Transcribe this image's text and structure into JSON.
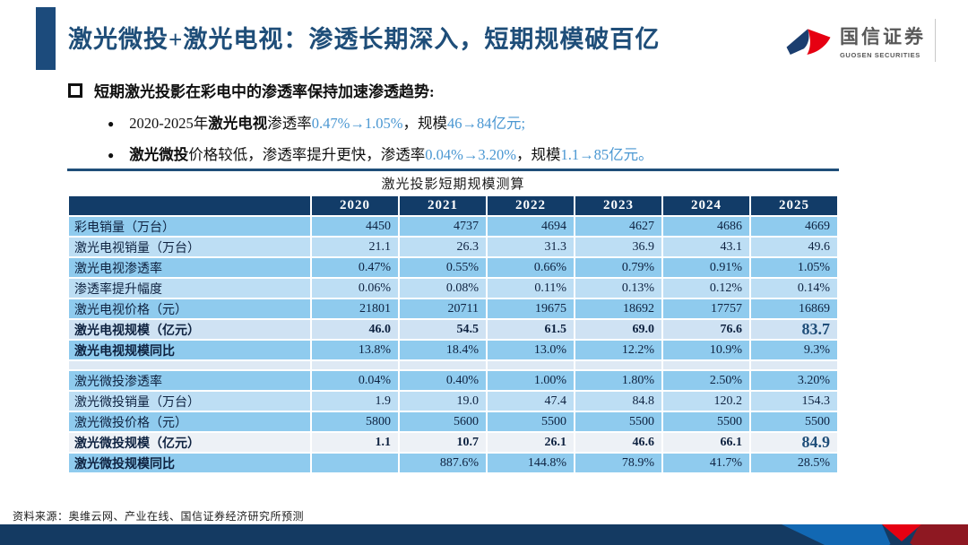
{
  "header": {
    "title": "激光微投+激光电视：渗透长期深入，短期规模破百亿",
    "brand": {
      "name_cn": "国信证券",
      "name_en": "GUOSEN SECURITIES"
    }
  },
  "bullets": {
    "heading": "短期激光投影在彩电中的渗透率保持加速渗透趋势:",
    "items": [
      {
        "segments": [
          {
            "t": "2020-2025年"
          },
          {
            "t": "激光电视",
            "b": true
          },
          {
            "t": "渗透率"
          },
          {
            "t": "0.47%→1.05%",
            "c": "blue"
          },
          {
            "t": "，规模"
          },
          {
            "t": "46→84亿元;",
            "c": "blue"
          }
        ]
      },
      {
        "segments": [
          {
            "t": "激光微投",
            "b": true
          },
          {
            "t": "价格较低，渗透率提升更快，渗透率"
          },
          {
            "t": "0.04%→3.20%",
            "c": "blue"
          },
          {
            "t": "，规模"
          },
          {
            "t": "1.1→85亿元。",
            "c": "blue"
          }
        ]
      }
    ]
  },
  "table": {
    "title": "激光投影短期规模测算",
    "years": [
      "2020",
      "2021",
      "2022",
      "2023",
      "2024",
      "2025"
    ],
    "rows": [
      {
        "label": "彩电销量（万台）",
        "values": [
          "4450",
          "4737",
          "4694",
          "4627",
          "4686",
          "4669"
        ],
        "bg": "row_medium"
      },
      {
        "label": "激光电视销量（万台）",
        "values": [
          "21.1",
          "26.3",
          "31.3",
          "36.9",
          "43.1",
          "49.6"
        ],
        "bg": "row_light"
      },
      {
        "label": "激光电视渗透率",
        "values": [
          "0.47%",
          "0.55%",
          "0.66%",
          "0.79%",
          "0.91%",
          "1.05%"
        ],
        "bg": "row_medium"
      },
      {
        "label": "渗透率提升幅度",
        "values": [
          "0.06%",
          "0.08%",
          "0.11%",
          "0.13%",
          "0.12%",
          "0.14%"
        ],
        "bg": "row_light"
      },
      {
        "label": "激光电视价格（元）",
        "values": [
          "21801",
          "20711",
          "19675",
          "18692",
          "17757",
          "16869"
        ],
        "bg": "row_medium"
      },
      {
        "label": "激光电视规模（亿元）",
        "values": [
          "46.0",
          "54.5",
          "61.5",
          "69.0",
          "76.6",
          "83.7"
        ],
        "bg": "row_subtotal_tv",
        "bold": true,
        "highlight_last": true
      },
      {
        "label": "激光电视规模同比",
        "values": [
          "13.8%",
          "18.4%",
          "13.0%",
          "12.2%",
          "10.9%",
          "9.3%"
        ],
        "bg": "row_medium",
        "bold_label": true
      },
      {
        "label": "",
        "values": [
          "",
          "",
          "",
          "",
          "",
          ""
        ],
        "bg": "row_spacer",
        "spacer": true
      },
      {
        "label": "激光微投渗透率",
        "values": [
          "0.04%",
          "0.40%",
          "1.00%",
          "1.80%",
          "2.50%",
          "3.20%"
        ],
        "bg": "row_medium"
      },
      {
        "label": "激光微投销量（万台）",
        "values": [
          "1.9",
          "19.0",
          "47.4",
          "84.8",
          "120.2",
          "154.3"
        ],
        "bg": "row_light"
      },
      {
        "label": "激光微投价格（元）",
        "values": [
          "5800",
          "5600",
          "5500",
          "5500",
          "5500",
          "5500"
        ],
        "bg": "row_medium"
      },
      {
        "label": "激光微投规模（亿元）",
        "values": [
          "1.1",
          "10.7",
          "26.1",
          "46.6",
          "66.1",
          "84.9"
        ],
        "bg": "row_subtotal_proj",
        "bold": true,
        "highlight_last": true
      },
      {
        "label": "激光微投规模同比",
        "values": [
          "",
          "887.6%",
          "144.8%",
          "78.9%",
          "41.7%",
          "28.5%"
        ],
        "bg": "row_medium",
        "bold_label": true
      }
    ]
  },
  "footer": {
    "source": "资料来源：奥维云网、产业在线、国信证券经济研究所预测"
  },
  "colors": {
    "title": "#1F4E79",
    "accent_text": "#4A97D2",
    "table_header_bg": "#123C68",
    "row_medium": "#8FCBEE",
    "row_light": "#BDDEF4",
    "row_subtotal_tv": "#CFE2F3",
    "row_subtotal_proj": "#EDF1F6",
    "row_spacer": "#DEE9F4",
    "highlight_value": "#1F4E79",
    "bar_navy": "#143A62",
    "bar_blue": "#1268B3",
    "bar_red": "#E60012",
    "bar_darkred": "#8E1822",
    "logo_blue": "#1B3E6F",
    "logo_red": "#E60012"
  }
}
